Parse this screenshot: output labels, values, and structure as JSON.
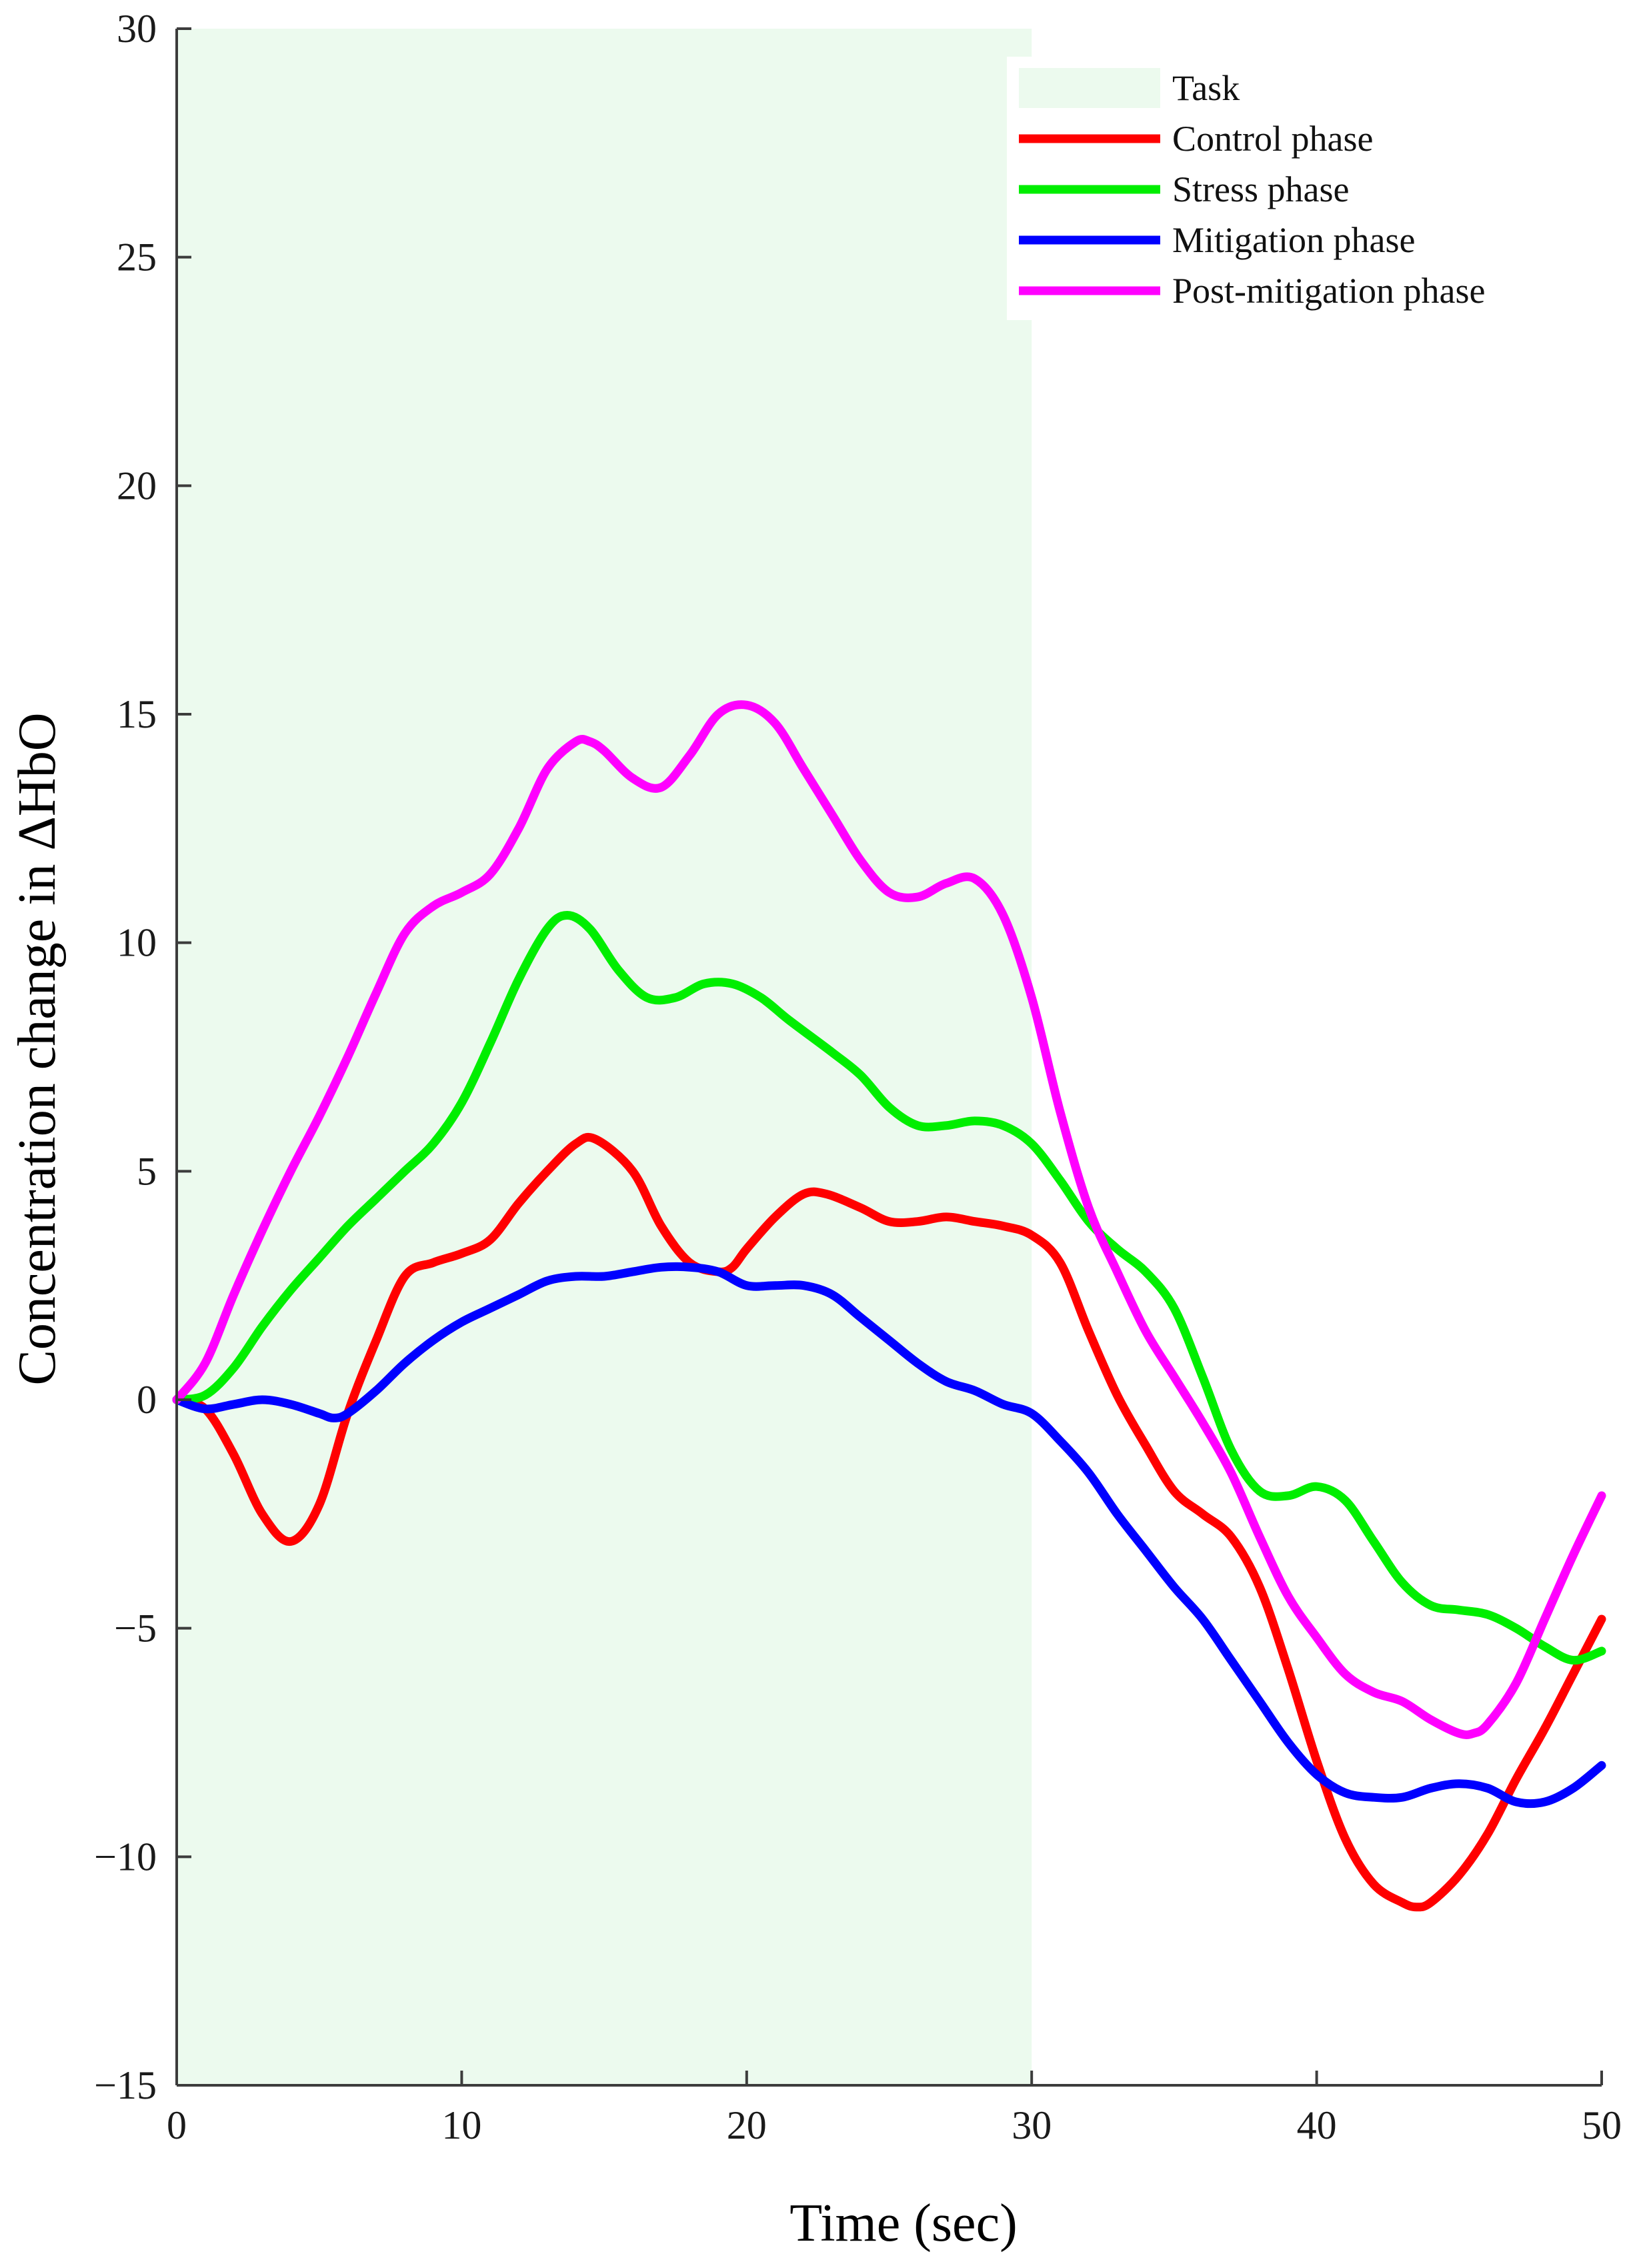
{
  "chart_data": {
    "type": "line",
    "title": "",
    "xlabel": "Time (sec)",
    "ylabel": "Concentration change in ΔHbO",
    "xlim": [
      0,
      50
    ],
    "ylim": [
      -15,
      30
    ],
    "x_ticks": [
      0,
      10,
      20,
      30,
      40,
      50
    ],
    "y_ticks": [
      -15,
      -10,
      -5,
      0,
      5,
      10,
      15,
      20,
      25,
      30
    ],
    "y_tick_labels": [
      "−15",
      "−10",
      "−5",
      "0",
      "5",
      "10",
      "15",
      "20",
      "25",
      "30"
    ],
    "grid": false,
    "legend_position": "top-right",
    "task_region": {
      "label": "Task",
      "x_start": 0,
      "x_end": 30,
      "color": "#ecfaee"
    },
    "series": [
      {
        "name": "Control phase",
        "color": "#ff0000",
        "x": [
          0,
          1,
          2,
          3,
          4,
          5,
          6,
          7,
          8,
          9,
          10,
          11,
          12,
          13,
          14,
          14.7,
          16,
          17,
          18,
          19,
          19.5,
          20,
          21,
          22,
          22.8,
          24,
          25,
          26,
          27,
          28,
          29,
          30,
          31,
          32,
          33,
          34,
          35,
          36,
          37,
          38,
          39,
          40,
          41,
          42,
          43,
          43.5,
          44,
          45,
          46,
          47,
          48,
          49,
          50
        ],
        "values": [
          0,
          -0.2,
          -1.2,
          -2.5,
          -3.1,
          -2.3,
          -0.3,
          1.3,
          2.7,
          3.0,
          3.2,
          3.5,
          4.3,
          5.0,
          5.6,
          5.7,
          5.0,
          3.8,
          3.0,
          2.8,
          2.9,
          3.3,
          4.0,
          4.5,
          4.5,
          4.2,
          3.9,
          3.9,
          4.0,
          3.9,
          3.8,
          3.6,
          3.0,
          1.5,
          0.1,
          -1.0,
          -2.0,
          -2.5,
          -3.0,
          -4.1,
          -5.9,
          -7.9,
          -9.6,
          -10.6,
          -11.0,
          -11.1,
          -11.0,
          -10.4,
          -9.5,
          -8.3,
          -7.2,
          -6.0,
          -4.8
        ]
      },
      {
        "name": "Stress phase",
        "color": "#00ee00",
        "x": [
          0,
          1,
          2,
          3,
          4,
          5,
          6,
          7,
          8,
          9,
          10,
          11,
          12,
          13,
          13.7,
          14.5,
          15.5,
          16.5,
          17.5,
          18.5,
          19.5,
          20.5,
          21.5,
          23,
          24,
          25,
          26,
          27,
          28,
          29,
          30,
          31,
          32,
          33,
          34,
          35,
          36,
          37,
          38,
          39,
          40,
          41,
          42,
          43,
          44,
          45,
          46,
          47,
          48,
          49,
          50
        ],
        "values": [
          0,
          0.1,
          0.7,
          1.6,
          2.4,
          3.1,
          3.8,
          4.4,
          5.0,
          5.6,
          6.5,
          7.8,
          9.2,
          10.3,
          10.6,
          10.3,
          9.4,
          8.8,
          8.8,
          9.1,
          9.1,
          8.8,
          8.3,
          7.6,
          7.1,
          6.4,
          6.0,
          6.0,
          6.1,
          6.0,
          5.6,
          4.8,
          3.9,
          3.3,
          2.8,
          2.0,
          0.5,
          -1.1,
          -2.0,
          -2.1,
          -1.9,
          -2.2,
          -3.1,
          -4.0,
          -4.5,
          -4.6,
          -4.7,
          -5.0,
          -5.4,
          -5.7,
          -5.5
        ]
      },
      {
        "name": "Mitigation phase",
        "color": "#0000ff",
        "x": [
          0,
          1,
          2,
          3,
          4,
          5,
          5.5,
          6,
          7,
          8,
          9,
          10,
          11,
          12,
          13,
          14,
          15,
          16,
          17,
          18,
          19,
          20,
          21,
          22,
          23,
          24,
          25,
          26,
          27,
          28,
          29,
          30,
          31,
          32,
          33,
          34,
          35,
          36,
          37,
          38,
          39,
          40,
          41,
          42,
          43,
          44,
          45,
          46,
          47,
          48,
          49,
          50
        ],
        "values": [
          0,
          -0.2,
          -0.1,
          0.0,
          -0.1,
          -0.3,
          -0.4,
          -0.3,
          0.2,
          0.8,
          1.3,
          1.7,
          2.0,
          2.3,
          2.6,
          2.7,
          2.7,
          2.8,
          2.9,
          2.9,
          2.8,
          2.5,
          2.5,
          2.5,
          2.3,
          1.8,
          1.3,
          0.8,
          0.4,
          0.2,
          -0.1,
          -0.3,
          -0.9,
          -1.6,
          -2.5,
          -3.3,
          -4.1,
          -4.8,
          -5.7,
          -6.6,
          -7.5,
          -8.2,
          -8.6,
          -8.7,
          -8.7,
          -8.5,
          -8.4,
          -8.5,
          -8.8,
          -8.8,
          -8.5,
          -8.0
        ]
      },
      {
        "name": "Post-mitigation phase",
        "color": "#ff00ff",
        "x": [
          0,
          1,
          2,
          3,
          4,
          5,
          6,
          7,
          8,
          9,
          10,
          11,
          12,
          13,
          14,
          14.5,
          15,
          16,
          17,
          18,
          19,
          20,
          21,
          22,
          23,
          24,
          25,
          26,
          27,
          28,
          29,
          30,
          31,
          32,
          33,
          34,
          35,
          36,
          37,
          38,
          39,
          40,
          41,
          42,
          43,
          44,
          45,
          45.5,
          46,
          47,
          48,
          49,
          50
        ],
        "values": [
          0,
          0.8,
          2.3,
          3.7,
          5.0,
          6.2,
          7.5,
          8.9,
          10.2,
          10.8,
          11.1,
          11.5,
          12.5,
          13.8,
          14.4,
          14.4,
          14.2,
          13.6,
          13.4,
          14.1,
          15.0,
          15.2,
          14.8,
          13.8,
          12.8,
          11.8,
          11.1,
          11.0,
          11.3,
          11.4,
          10.6,
          8.8,
          6.3,
          4.2,
          2.8,
          1.5,
          0.5,
          -0.5,
          -1.6,
          -3.0,
          -4.3,
          -5.2,
          -6.0,
          -6.4,
          -6.6,
          -7.0,
          -7.3,
          -7.3,
          -7.1,
          -6.2,
          -4.8,
          -3.4,
          -2.1
        ]
      }
    ]
  }
}
